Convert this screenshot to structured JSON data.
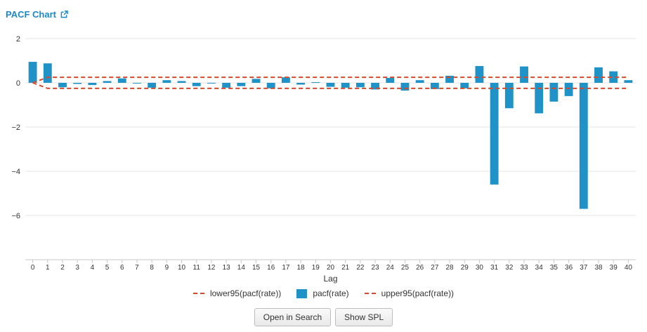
{
  "header": {
    "title": "PACF Chart"
  },
  "icons": {
    "external_link": "external-link-icon"
  },
  "colors": {
    "bar": "#1f93c8",
    "bound": "#d44a2a",
    "grid": "#e6e6e6",
    "title": "#1a8ac4"
  },
  "legend": {
    "lower": "lower95(pacf(rate))",
    "pacf": "pacf(rate)",
    "upper": "upper95(pacf(rate))"
  },
  "buttons": {
    "open_search": "Open in Search",
    "show_spl": "Show SPL"
  },
  "chart_data": {
    "type": "bar",
    "title": "",
    "xlabel": "Lag",
    "ylabel": "",
    "ylim": [
      -8,
      2
    ],
    "yticks": [
      2,
      0,
      -2,
      -4,
      -6
    ],
    "grid": true,
    "legend_position": "bottom",
    "categories": [
      "0",
      "1",
      "2",
      "3",
      "4",
      "5",
      "6",
      "7",
      "8",
      "9",
      "10",
      "11",
      "12",
      "13",
      "14",
      "15",
      "16",
      "17",
      "18",
      "19",
      "20",
      "21",
      "22",
      "23",
      "24",
      "25",
      "26",
      "27",
      "28",
      "29",
      "30",
      "31",
      "32",
      "33",
      "34",
      "35",
      "36",
      "37",
      "38",
      "39",
      "40"
    ],
    "series": [
      {
        "name": "pacf(rate)",
        "kind": "bar",
        "values": [
          0.95,
          0.88,
          -0.2,
          -0.05,
          -0.1,
          0.08,
          0.2,
          -0.03,
          -0.22,
          0.12,
          0.08,
          -0.15,
          -0.03,
          -0.22,
          -0.15,
          0.18,
          -0.25,
          0.25,
          -0.08,
          0.03,
          -0.18,
          -0.22,
          -0.2,
          -0.3,
          0.22,
          -0.35,
          0.12,
          -0.28,
          0.32,
          -0.25,
          0.76,
          -4.6,
          -1.15,
          0.74,
          -1.38,
          -0.85,
          -0.6,
          -5.7,
          0.7,
          0.52,
          0.12
        ]
      },
      {
        "name": "lower95(pacf(rate))",
        "kind": "dashed-line",
        "values": [
          0,
          -0.25,
          -0.25,
          -0.25,
          -0.25,
          -0.25,
          -0.25,
          -0.25,
          -0.25,
          -0.25,
          -0.25,
          -0.25,
          -0.25,
          -0.25,
          -0.25,
          -0.25,
          -0.25,
          -0.25,
          -0.25,
          -0.25,
          -0.25,
          -0.25,
          -0.25,
          -0.25,
          -0.25,
          -0.25,
          -0.25,
          -0.25,
          -0.25,
          -0.25,
          -0.25,
          -0.25,
          -0.25,
          -0.25,
          -0.25,
          -0.25,
          -0.25,
          -0.25,
          -0.25,
          -0.25,
          -0.25
        ]
      },
      {
        "name": "upper95(pacf(rate))",
        "kind": "dashed-line",
        "values": [
          0,
          0.25,
          0.25,
          0.25,
          0.25,
          0.25,
          0.25,
          0.25,
          0.25,
          0.25,
          0.25,
          0.25,
          0.25,
          0.25,
          0.25,
          0.25,
          0.25,
          0.25,
          0.25,
          0.25,
          0.25,
          0.25,
          0.25,
          0.25,
          0.25,
          0.25,
          0.25,
          0.25,
          0.25,
          0.25,
          0.25,
          0.25,
          0.25,
          0.25,
          0.25,
          0.25,
          0.25,
          0.25,
          0.25,
          0.25,
          0.25
        ]
      }
    ]
  }
}
